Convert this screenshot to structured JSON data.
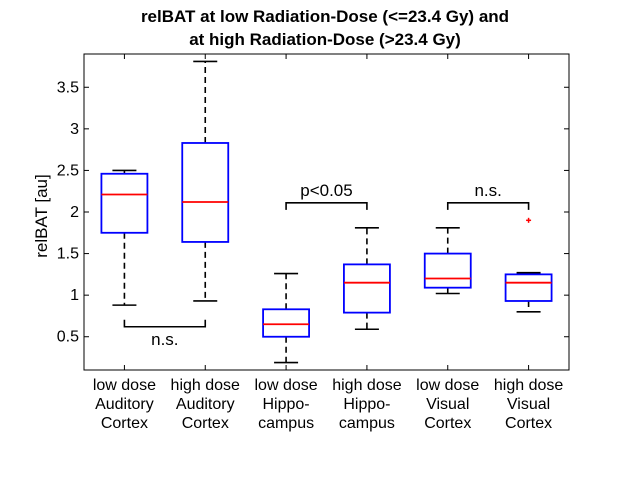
{
  "chart_data": {
    "type": "boxplot",
    "title": [
      "relBAT at low Radiation-Dose (<=23.4 Gy) and",
      "at high Radiation-Dose (>23.4 Gy)"
    ],
    "ylabel": "relBAT [au]",
    "xlabel": "",
    "ylim": [
      0.1,
      3.9
    ],
    "yticks": [
      "0.5",
      "1",
      "1.5",
      "2",
      "2.5",
      "3",
      "3.5"
    ],
    "categories": [
      [
        "low dose",
        "Auditory",
        "Cortex"
      ],
      [
        "high dose",
        "Auditory",
        "Cortex"
      ],
      [
        "low dose",
        "Hippo-",
        "campus"
      ],
      [
        "high dose",
        "Hippo-",
        "campus"
      ],
      [
        "low dose",
        "Visual",
        "Cortex"
      ],
      [
        "high dose",
        "Visual",
        "Cortex"
      ]
    ],
    "boxes": [
      {
        "whisker_low": 0.88,
        "q1": 1.75,
        "median": 2.21,
        "q3": 2.46,
        "whisker_high": 2.5,
        "outliers": []
      },
      {
        "whisker_low": 0.93,
        "q1": 1.64,
        "median": 2.12,
        "q3": 2.83,
        "whisker_high": 3.81,
        "outliers": []
      },
      {
        "whisker_low": 0.19,
        "q1": 0.5,
        "median": 0.65,
        "q3": 0.83,
        "whisker_high": 1.26,
        "outliers": []
      },
      {
        "whisker_low": 0.59,
        "q1": 0.79,
        "median": 1.15,
        "q3": 1.37,
        "whisker_high": 1.81,
        "outliers": []
      },
      {
        "whisker_low": 1.02,
        "q1": 1.09,
        "median": 1.2,
        "q3": 1.5,
        "whisker_high": 1.81,
        "outliers": []
      },
      {
        "whisker_low": 0.8,
        "q1": 0.93,
        "median": 1.15,
        "q3": 1.25,
        "whisker_high": 1.27,
        "outliers": [
          1.9
        ]
      }
    ],
    "annotations": [
      {
        "text": "n.s.",
        "from": 0,
        "to": 1,
        "y": 0.62,
        "position": "below"
      },
      {
        "text": "p<0.05",
        "from": 2,
        "to": 3,
        "y": 2.11,
        "position": "above"
      },
      {
        "text": "n.s.",
        "from": 4,
        "to": 5,
        "y": 2.11,
        "position": "above"
      }
    ],
    "colors": {
      "box": "#0000ff",
      "median": "#ff0000",
      "whisker": "#000000",
      "outlier": "#ff0000"
    }
  }
}
